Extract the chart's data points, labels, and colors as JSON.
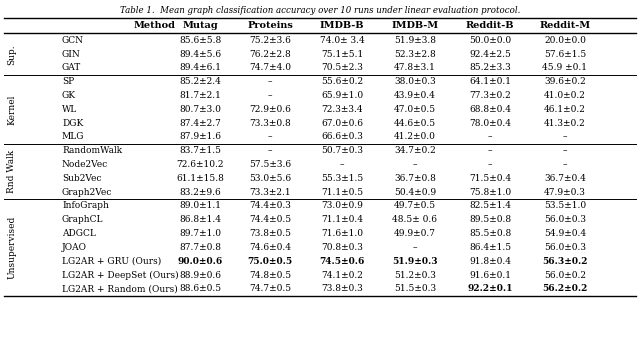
{
  "title": "Table 1.  Mean graph classification accuracy over 10 runs under linear evaluation protocol.",
  "columns": [
    "Method",
    "Mutag",
    "Proteins",
    "IMDB-B",
    "IMDB-M",
    "Reddit-B",
    "Reddit-M"
  ],
  "groups": [
    {
      "label": "Sup.",
      "rows": [
        [
          "GCN",
          "85.6±5.8",
          "75.2±3.6",
          "74.0± 3.4",
          "51.9±3.8",
          "50.0±0.0",
          "20.0±0.0"
        ],
        [
          "GIN",
          "89.4±5.6",
          "76.2±2.8",
          "75.1±5.1",
          "52.3±2.8",
          "92.4±2.5",
          "57.6±1.5"
        ],
        [
          "GAT",
          "89.4±6.1",
          "74.7±4.0",
          "70.5±2.3",
          "47.8±3.1",
          "85.2±3.3",
          "45.9 ±0.1"
        ]
      ]
    },
    {
      "label": "Kernel",
      "rows": [
        [
          "SP",
          "85.2±2.4",
          "–",
          "55.6±0.2",
          "38.0±0.3",
          "64.1±0.1",
          "39.6±0.2"
        ],
        [
          "GK",
          "81.7±2.1",
          "–",
          "65.9±1.0",
          "43.9±0.4",
          "77.3±0.2",
          "41.0±0.2"
        ],
        [
          "WL",
          "80.7±3.0",
          "72.9±0.6",
          "72.3±3.4",
          "47.0±0.5",
          "68.8±0.4",
          "46.1±0.2"
        ],
        [
          "DGK",
          "87.4±2.7",
          "73.3±0.8",
          "67.0±0.6",
          "44.6±0.5",
          "78.0±0.4",
          "41.3±0.2"
        ],
        [
          "MLG",
          "87.9±1.6",
          "–",
          "66.6±0.3",
          "41.2±0.0",
          "–",
          "–"
        ]
      ]
    },
    {
      "label": "Rnd Walk",
      "rows": [
        [
          "RandomWalk",
          "83.7±1.5",
          "–",
          "50.7±0.3",
          "34.7±0.2",
          "–",
          "–"
        ],
        [
          "Node2Vec",
          "72.6±10.2",
          "57.5±3.6",
          "–",
          "–",
          "–",
          "–"
        ],
        [
          "Sub2Vec",
          "61.1±15.8",
          "53.0±5.6",
          "55.3±1.5",
          "36.7±0.8",
          "71.5±0.4",
          "36.7±0.4"
        ],
        [
          "Graph2Vec",
          "83.2±9.6",
          "73.3±2.1",
          "71.1±0.5",
          "50.4±0.9",
          "75.8±1.0",
          "47.9±0.3"
        ]
      ]
    },
    {
      "label": "Unsupervised",
      "rows": [
        [
          "InfoGraph",
          "89.0±1.1",
          "74.4±0.3",
          "73.0±0.9",
          "49.7±0.5",
          "82.5±1.4",
          "53.5±1.0"
        ],
        [
          "GraphCL",
          "86.8±1.4",
          "74.4±0.5",
          "71.1±0.4",
          "48.5± 0.6",
          "89.5±0.8",
          "56.0±0.3"
        ],
        [
          "ADGCL",
          "89.7±1.0",
          "73.8±0.5",
          "71.6±1.0",
          "49.9±0.7",
          "85.5±0.8",
          "54.9±0.4"
        ],
        [
          "JOAO",
          "87.7±0.8",
          "74.6±0.4",
          "70.8±0.3",
          "–",
          "86.4±1.5",
          "56.0±0.3"
        ],
        [
          "LG2AR + GRU (Ours)",
          "90.0±0.6",
          "75.0±0.5",
          "74.5±0.6",
          "51.9±0.3",
          "91.8±0.4",
          "56.3±0.2"
        ],
        [
          "LG2AR + DeepSet (Ours)",
          "88.9±0.6",
          "74.8±0.5",
          "74.1±0.2",
          "51.2±0.3",
          "91.6±0.1",
          "56.0±0.2"
        ],
        [
          "LG2AR + Random (Ours)",
          "88.6±0.5",
          "74.7±0.5",
          "73.8±0.3",
          "51.5±0.3",
          "92.2±0.1",
          "56.2±0.2"
        ]
      ]
    }
  ],
  "bold_cells": {
    "3_4_0": true,
    "3_4_1": true,
    "3_4_2": true,
    "3_4_3": true,
    "3_4_5": true,
    "3_6_4": true,
    "3_6_5": true
  },
  "bg_color": "#ffffff",
  "text_color": "#000000",
  "line_color": "#000000",
  "fig_width": 6.4,
  "fig_height": 3.61,
  "dpi": 100
}
